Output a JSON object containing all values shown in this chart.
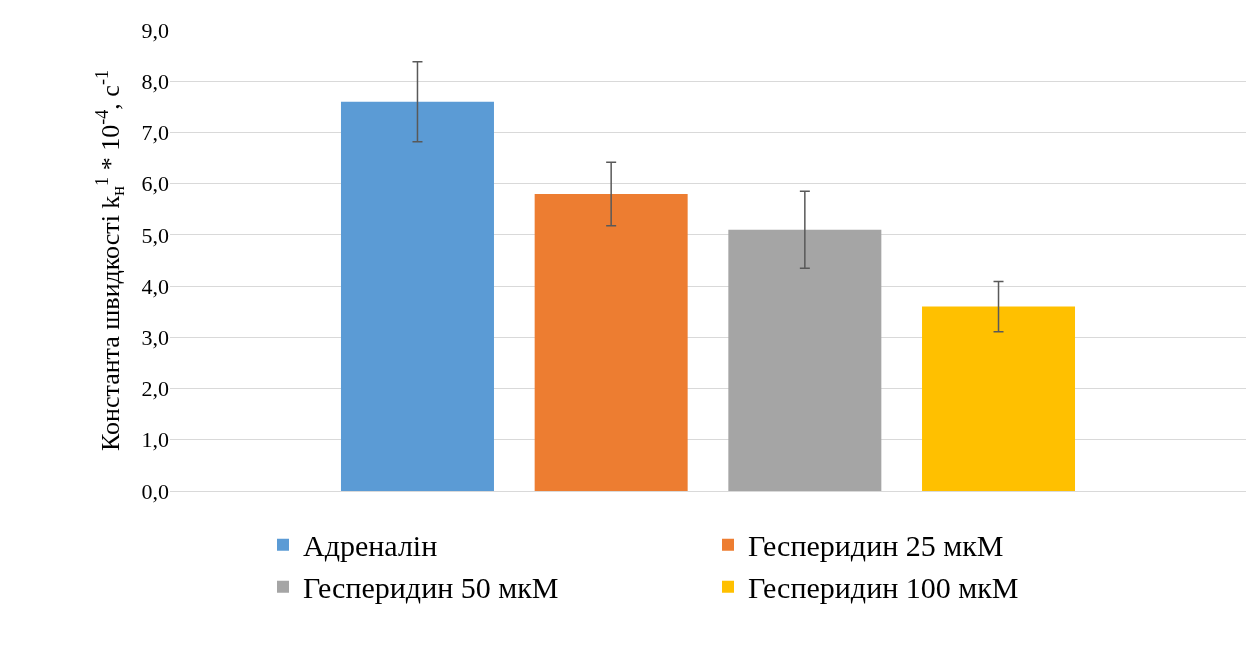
{
  "chart_data": {
    "type": "bar",
    "ylabel": "Константа швидкості k$_{н}$$^{1}$ * 10$^{-4}$, с$^{-1}$",
    "categories": [
      null
    ],
    "series": [
      {
        "name": "Адреналін",
        "color": "#5b9bd5",
        "values": [
          7.6
        ],
        "errors": [
          0.78
        ]
      },
      {
        "name": "Гесперидин 25 мкМ",
        "color": "#ed7d31",
        "values": [
          5.8
        ],
        "errors": [
          0.62
        ]
      },
      {
        "name": "Гесперидин 50 мкМ",
        "color": "#a5a5a5",
        "values": [
          5.1
        ],
        "errors": [
          0.75
        ]
      },
      {
        "name": "Гесперидин 100 мкМ",
        "color": "#ffc000",
        "values": [
          3.6
        ],
        "errors": [
          0.49
        ]
      }
    ],
    "ylim": [
      0,
      9
    ],
    "yticks": [
      {
        "value": 0,
        "label": "0,0"
      },
      {
        "value": 1,
        "label": "1,0"
      },
      {
        "value": 2,
        "label": "2,0"
      },
      {
        "value": 3,
        "label": "3,0"
      },
      {
        "value": 4,
        "label": "4,0"
      },
      {
        "value": 5,
        "label": "5,0"
      },
      {
        "value": 6,
        "label": "6,0"
      },
      {
        "value": 7,
        "label": "7,0"
      },
      {
        "value": 8,
        "label": "8,0"
      },
      {
        "value": 9,
        "label": "9,0"
      }
    ],
    "grid": "y",
    "legend": "bottom"
  }
}
